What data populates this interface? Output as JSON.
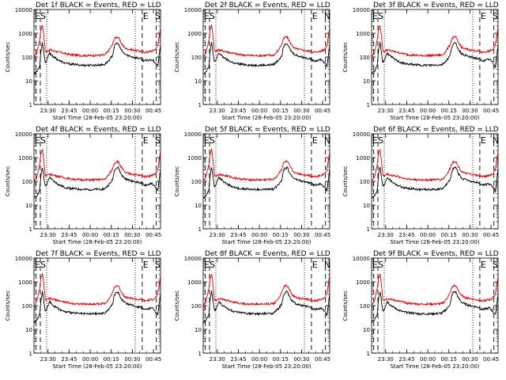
{
  "chart_data": [
    {
      "type": "line",
      "title": "Det 1f BLACK = Events, RED = LLD",
      "ylabel": "Counts/sec",
      "xlabel": "Start Time (28-Feb-05 23:20:00)",
      "markers": [
        "E",
        "S",
        "E",
        "S"
      ]
    },
    {
      "type": "line",
      "title": "Det 2f BLACK = Events, RED = LLD",
      "ylabel": "Counts/sec",
      "xlabel": "Start Time (28-Feb-05 23:20:00)",
      "markers": [
        "E",
        "S",
        "E",
        "N"
      ]
    },
    {
      "type": "line",
      "title": "Det 3f BLACK = Events, RED = LLD",
      "ylabel": "Counts/sec",
      "xlabel": "Start Time (28-Feb-05 23:20:00)",
      "markers": [
        "E",
        "S",
        "E",
        "S"
      ]
    },
    {
      "type": "line",
      "title": "Det 4f BLACK = Events, RED = LLD",
      "ylabel": "Counts/sec",
      "xlabel": "Start Time (28-Feb-05 23:20:00)",
      "markers": [
        "E",
        "S",
        "E",
        "S"
      ]
    },
    {
      "type": "line",
      "title": "Det 5f BLACK = Events, RED = LLD",
      "ylabel": "Counts/sec",
      "xlabel": "Start Time (28-Feb-05 23:20:00)",
      "markers": [
        "E",
        "S",
        "E",
        "N"
      ]
    },
    {
      "type": "line",
      "title": "Det 6f BLACK = Events, RED = LLD",
      "ylabel": "Counts/sec",
      "xlabel": "Start Time (28-Feb-05 23:20:00)",
      "markers": [
        "E",
        "S",
        "E",
        "N"
      ]
    },
    {
      "type": "line",
      "title": "Det 7f BLACK = Events, RED = LLD",
      "ylabel": "Counts/sec",
      "xlabel": "Start Time (28-Feb-05 23:20:00)",
      "markers": [
        "E",
        "S",
        "E",
        "S"
      ]
    },
    {
      "type": "line",
      "title": "Det 8f BLACK = Events, RED = LLD",
      "ylabel": "Counts/sec",
      "xlabel": "Start Time (28-Feb-05 23:20:00)",
      "markers": [
        "E",
        "S",
        "E",
        "N"
      ]
    },
    {
      "type": "line",
      "title": "Det 9f BLACK = Events, RED = LLD",
      "ylabel": "Counts/sec",
      "xlabel": "Start Time (28-Feb-05 23:20:00)",
      "markers": [
        "E",
        "S",
        "E",
        "S"
      ]
    }
  ],
  "axes": {
    "x_tick_labels": [
      "23:30",
      "23:45",
      "00:00",
      "00:15",
      "00:30",
      "00:45"
    ],
    "y_tick_labels": [
      "1",
      "10",
      "100",
      "1000",
      "10000"
    ],
    "x_range_minutes": [
      0,
      90
    ],
    "y_range": [
      1,
      10000
    ],
    "y_scale": "log"
  },
  "series_style": {
    "events": {
      "color": "#000000"
    },
    "lld": {
      "color": "#dd0000"
    }
  },
  "curve": {
    "x_minutes": [
      0,
      2,
      4,
      5,
      6,
      7,
      8,
      9,
      11,
      14,
      18,
      22,
      26,
      30,
      34,
      38,
      42,
      46,
      50,
      52,
      54,
      56,
      57,
      58,
      59,
      60,
      62,
      64,
      66,
      68,
      70,
      72,
      74,
      76,
      77,
      78,
      80,
      82,
      84,
      86,
      88,
      90
    ],
    "events": [
      20,
      25,
      40,
      200,
      400,
      150,
      60,
      70,
      150,
      100,
      70,
      55,
      50,
      48,
      45,
      45,
      45,
      46,
      48,
      60,
      80,
      120,
      250,
      350,
      380,
      360,
      200,
      140,
      120,
      110,
      100,
      95,
      90,
      85,
      80,
      70,
      70,
      75,
      80,
      60,
      40,
      300
    ],
    "lld": [
      100,
      150,
      500,
      1500,
      2200,
      800,
      180,
      170,
      200,
      180,
      160,
      140,
      125,
      120,
      115,
      115,
      115,
      118,
      120,
      150,
      220,
      350,
      550,
      650,
      700,
      650,
      400,
      260,
      220,
      210,
      200,
      190,
      180,
      175,
      170,
      160,
      160,
      170,
      180,
      200,
      300,
      1800
    ]
  },
  "dashed_lines_minutes": [
    1.5,
    4.5,
    77,
    87
  ],
  "dotted_lines_minutes": [
    9,
    72
  ]
}
